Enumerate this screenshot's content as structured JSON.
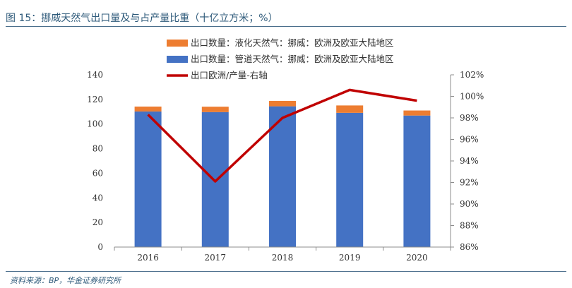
{
  "figure_title": "图 15：挪威天然气出口量及与占产量比重（十亿立方米；%）",
  "source": "资料来源：BP，华金证券研究所",
  "colors": {
    "pipeline": "#4472c4",
    "lng": "#ed7d31",
    "share": "#c00000",
    "accent": "#2e5a7a"
  },
  "chart_data": {
    "type": "bar",
    "categories": [
      "2016",
      "2017",
      "2018",
      "2019",
      "2020"
    ],
    "series": [
      {
        "name": "出口数量：管道天然气：挪威：欧洲及欧亚大陆地区",
        "kind": "bar",
        "axis": "left",
        "values": [
          110.2,
          109.7,
          114.4,
          109.1,
          106.9
        ]
      },
      {
        "name": "出口数量：液化天然气：挪威：欧洲及欧亚大陆地区",
        "kind": "bar",
        "axis": "left",
        "values": [
          4.0,
          4.4,
          4.4,
          6.0,
          4.1
        ]
      },
      {
        "name": "出口欧洲/产量-右轴",
        "kind": "line",
        "axis": "right",
        "values": [
          98.3,
          92.1,
          98.0,
          100.6,
          99.6
        ]
      }
    ],
    "stacked": true,
    "ylim_left": [
      0,
      140
    ],
    "yticks_left": [
      "0",
      "20",
      "40",
      "60",
      "80",
      "100",
      "120",
      "140"
    ],
    "ylim_right": [
      86,
      102
    ],
    "yticks_right": [
      "86%",
      "88%",
      "90%",
      "92%",
      "94%",
      "96%",
      "98%",
      "100%",
      "102%"
    ],
    "legend_position": "top-center",
    "grid": false
  }
}
